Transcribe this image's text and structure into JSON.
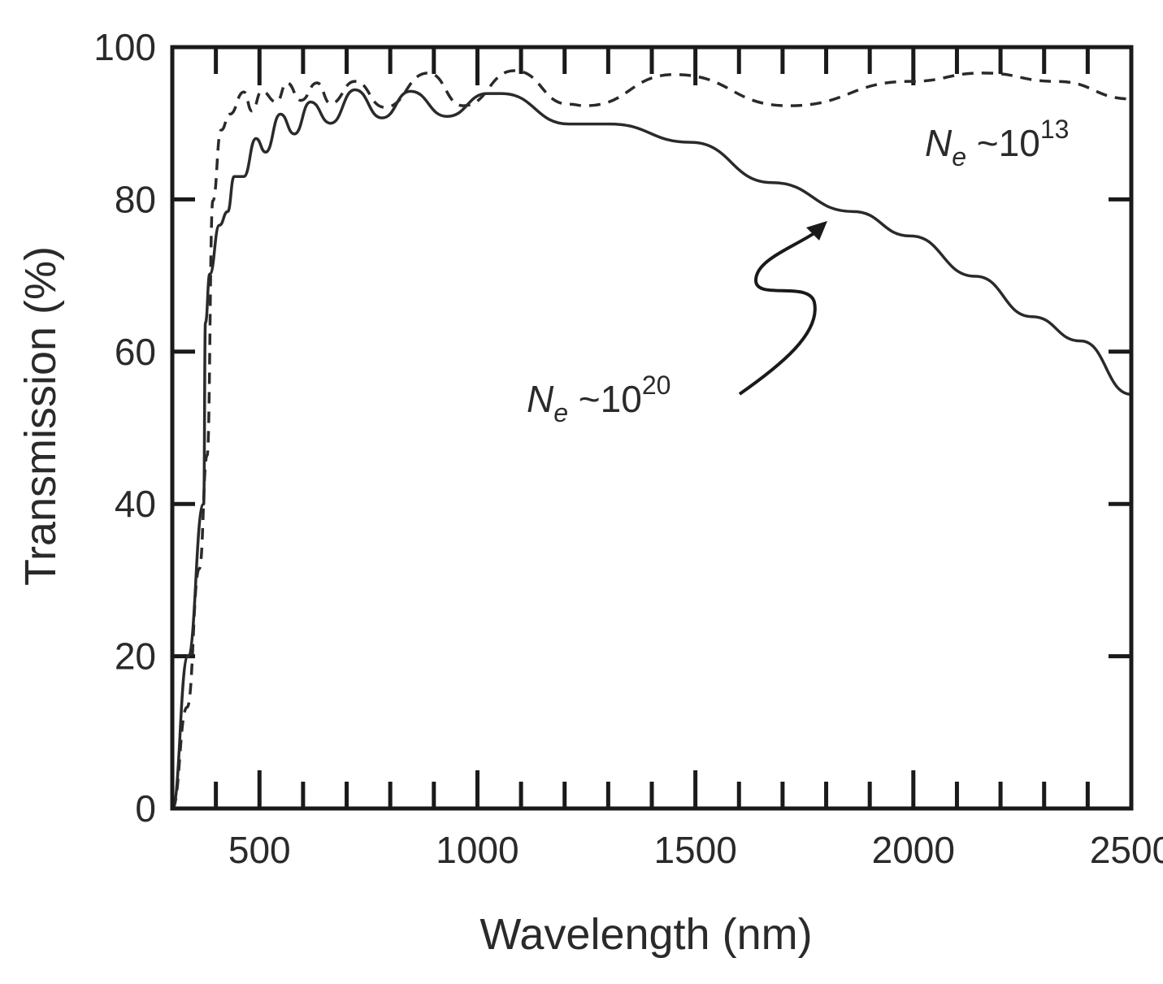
{
  "chart_data": {
    "type": "line",
    "title": "",
    "xlabel": "Wavelength (nm)",
    "ylabel": "Transmission (%)",
    "xlim": [
      300,
      2500
    ],
    "ylim": [
      0,
      100
    ],
    "xticks": [
      500,
      1000,
      1500,
      2000,
      2500
    ],
    "xtick_labels": [
      "500",
      "1000",
      "1500",
      "2000",
      "2500"
    ],
    "xminor_step": 100,
    "yticks": [
      0,
      20,
      40,
      60,
      80,
      100
    ],
    "ytick_labels": [
      "0",
      "20",
      "40",
      "60",
      "80",
      "100"
    ],
    "grid": false,
    "series": [
      {
        "name": "Ne ~10^20",
        "style": "solid",
        "x": [
          300,
          336,
          372,
          376,
          386,
          408,
          427,
          442,
          464,
          492,
          514,
          548,
          580,
          617,
          663,
          719,
          781,
          846,
          930,
          1023,
          1055,
          1210,
          1303,
          1489,
          1676,
          1862,
          1993,
          2142,
          2272,
          2384,
          2500
        ],
        "y": [
          0,
          20,
          40,
          63.8,
          70.2,
          76.6,
          78.4,
          83,
          83,
          88,
          86.2,
          91.2,
          88.6,
          92.8,
          90,
          94.4,
          90.7,
          94.2,
          90.9,
          93.9,
          93.9,
          89.9,
          89.9,
          87.5,
          82.2,
          78.4,
          75.2,
          69.9,
          64.6,
          61.4,
          54.4
        ]
      },
      {
        "name": "Ne ~10^13",
        "style": "dashed",
        "x": [
          300,
          334,
          362,
          380,
          393,
          412,
          432,
          464,
          483,
          505,
          539,
          563,
          595,
          632,
          663,
          719,
          787,
          887,
          967,
          1085,
          1210,
          1247,
          1452,
          1713,
          1993,
          2160,
          2328,
          2500
        ],
        "y": [
          0,
          13.3,
          31.5,
          46.4,
          79.8,
          89.1,
          91.2,
          94.1,
          91.6,
          94.2,
          92.8,
          95.3,
          93,
          95.3,
          92.6,
          95.5,
          92.1,
          96.6,
          92.3,
          96.9,
          92.5,
          92.3,
          96.4,
          92.3,
          95.5,
          96.6,
          95.5,
          93.2
        ]
      }
    ],
    "annotations": [
      {
        "text_main": "N",
        "text_sub": "e",
        "text_mid": " ~10",
        "text_sup": "13",
        "target_series": "Ne ~10^13"
      },
      {
        "text_main": "N",
        "text_sub": "e",
        "text_mid": " ~10",
        "text_sup": "20",
        "target_series": "Ne ~10^20"
      }
    ]
  }
}
